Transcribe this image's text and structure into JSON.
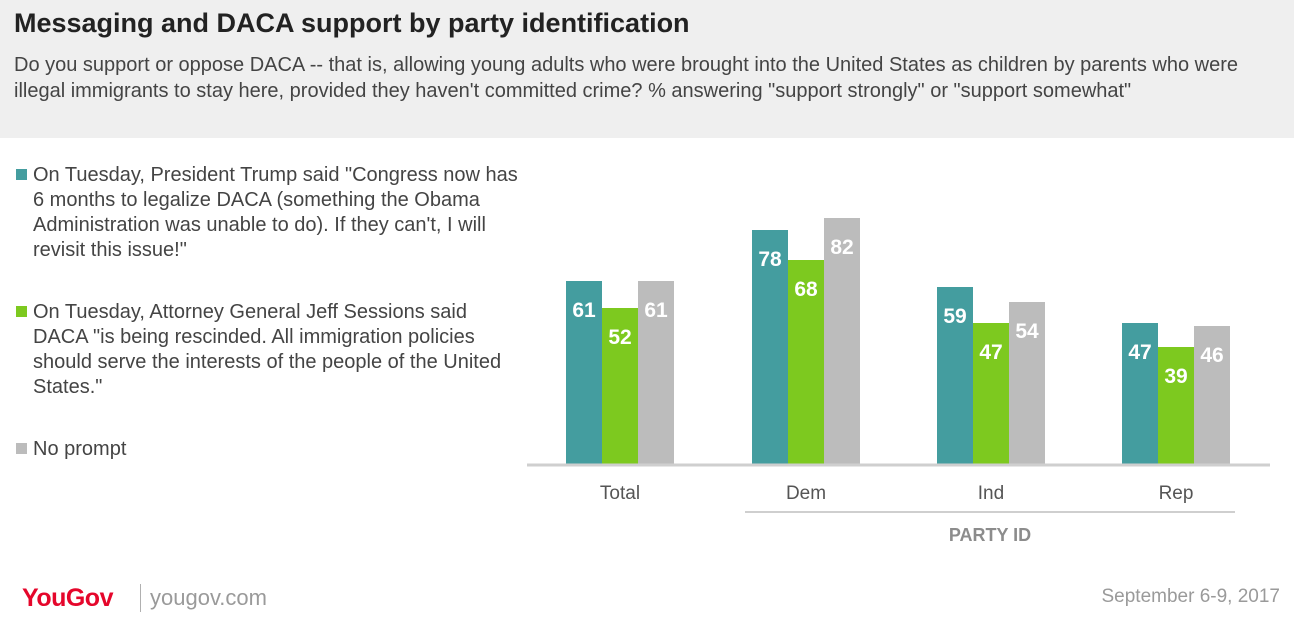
{
  "header": {
    "title": "Messaging and DACA support by party identification",
    "subtitle": "Do you support or oppose DACA -- that is, allowing young adults who were brought into the United States as children by parents who were illegal immigrants to stay here, provided they haven't committed crime? % answering \"support strongly\" or \"support somewhat\""
  },
  "legend": [
    {
      "label": "On Tuesday, President Trump said \"Congress now has 6 months to legalize DACA (something the Obama Administration was unable to do). If they can't, I will revisit this issue!\"",
      "color": "#449d9f"
    },
    {
      "label": "On Tuesday, Attorney General Jeff Sessions said DACA \"is being rescinded. All immigration policies should serve the interests of the people of the United States.\"",
      "color": "#7dc91f"
    },
    {
      "label": "No prompt",
      "color": "#bcbcbc"
    }
  ],
  "chart_data": {
    "type": "bar",
    "title": "Messaging and DACA support by party identification",
    "categories": [
      "Total",
      "Dem",
      "Ind",
      "Rep"
    ],
    "group_label": "PARTY ID",
    "series": [
      {
        "name": "On Tuesday, President Trump said \"Congress now has 6 months to legalize DACA (something the Obama Administration was unable to do). If they can't, I will revisit this issue!\"",
        "values": [
          61,
          78,
          59,
          47
        ],
        "color": "#449d9f"
      },
      {
        "name": "On Tuesday, Attorney General Jeff Sessions said DACA \"is being rescinded. All immigration policies should serve the interests of the people of the United States.\"",
        "values": [
          52,
          68,
          47,
          39
        ],
        "color": "#7dc91f"
      },
      {
        "name": "No prompt",
        "values": [
          61,
          82,
          54,
          46
        ],
        "color": "#bcbcbc"
      }
    ],
    "ylim": [
      0,
      100
    ],
    "grid": false,
    "data_labels": true,
    "legend_position": "left"
  },
  "footer": {
    "brand": "YouGov",
    "site": "yougov.com",
    "date": "September 6-9, 2017"
  }
}
